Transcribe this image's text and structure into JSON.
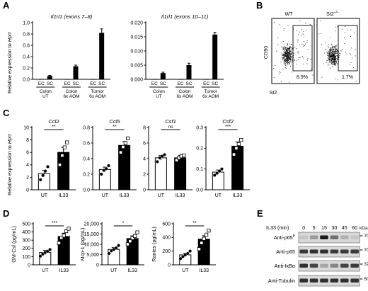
{
  "panel_letters": [
    "A",
    "B",
    "C",
    "D",
    "E"
  ],
  "panelA": {
    "ylabel_prefix": "Relative expression to ",
    "ylabel_gene": "Hprt",
    "group_labels": [
      "Colon UT",
      "Colon 6x AOM",
      "Tumor 6x AOM"
    ],
    "cell_labels": [
      "EC",
      "SC"
    ]
  },
  "panelB": {
    "plot_titles": [
      "WT",
      "St2"
    ],
    "ko_sup": "−/−",
    "ylabel": "CD90",
    "xlabel": "St2",
    "gate_values": [
      "8.9%",
      "1.7%"
    ]
  },
  "panelC": {
    "ylabel_prefix": "Relative expression to ",
    "ylabel_gene": "Hprt"
  },
  "panelE": {
    "header": "IL33 (min)",
    "timepoints": [
      "0",
      "5",
      "15",
      "30",
      "45",
      "60"
    ],
    "kda_label": "kDa",
    "rows": [
      {
        "label": "Anti-p65",
        "sup": "P",
        "kda": "70"
      },
      {
        "label": "Anti-p65",
        "sup": "",
        "kda": "70"
      },
      {
        "label": "Anti-IκBα",
        "sup": "",
        "kda": "37"
      },
      {
        "label": "Anti-Tubulin",
        "sup": "",
        "kda": "50"
      }
    ]
  },
  "chart_data": [
    {
      "type": "bar",
      "title": "Il1rl1 (exons 7–8)",
      "ylabel": "Relative expression to Hprt",
      "ylim": [
        0,
        1.0
      ],
      "yticks": [
        "0.0",
        "0.2",
        "0.4",
        "0.6",
        "0.8",
        "1.0"
      ],
      "categories": [
        "EC",
        "SC",
        "EC",
        "SC",
        "EC",
        "SC"
      ],
      "groups": [
        "Colon UT",
        "Colon 6x AOM",
        "Tumor 6x AOM"
      ],
      "values": [
        0.0,
        0.06,
        0.0,
        0.23,
        0.0,
        0.82
      ],
      "errors": [
        0.0,
        0.01,
        0.0,
        0.02,
        0.0,
        0.07
      ]
    },
    {
      "type": "bar",
      "title": "Il1rl1 (exons 10–11)",
      "ylabel": "",
      "ylim": [
        0,
        0.02
      ],
      "yticks": [
        "0.000",
        "0.005",
        "0.010",
        "0.015",
        "0.020"
      ],
      "categories": [
        "EC",
        "SC",
        "EC",
        "SC",
        "EC",
        "SC"
      ],
      "groups": [
        "Colon UT",
        "Colon 6x AOM",
        "Tumor 6x AOM"
      ],
      "values": [
        0.0,
        0.0022,
        0.0,
        0.005,
        0.0,
        0.0158
      ],
      "errors": [
        0.0,
        0.0003,
        0.0,
        0.0007,
        0.0,
        0.0008
      ]
    },
    {
      "type": "bar",
      "title": "Ccl2",
      "ylabel": "Relative expression to Hprt",
      "ylim": [
        0,
        10
      ],
      "yticks": [
        "0",
        "2",
        "4",
        "6",
        "8",
        "10"
      ],
      "categories": [
        "UT",
        "IL33"
      ],
      "values": [
        2.6,
        6.0
      ],
      "errors": [
        0.5,
        0.8
      ],
      "points": [
        [
          1.6,
          2.3,
          3.0,
          3.7
        ],
        [
          4.0,
          5.5,
          6.8,
          7.6
        ]
      ],
      "significance": "**"
    },
    {
      "type": "bar",
      "title": "Ccl5",
      "ylabel": "",
      "ylim": [
        0,
        0.8
      ],
      "yticks": [
        "0.0",
        "0.2",
        "0.4",
        "0.6",
        "0.8"
      ],
      "categories": [
        "UT",
        "IL33"
      ],
      "values": [
        0.26,
        0.57
      ],
      "errors": [
        0.03,
        0.05
      ],
      "points": [
        [
          0.2,
          0.25,
          0.27,
          0.31
        ],
        [
          0.48,
          0.55,
          0.6,
          0.66
        ]
      ],
      "significance": "**"
    },
    {
      "type": "bar",
      "title": "Csf1",
      "ylabel": "",
      "ylim": [
        0,
        8
      ],
      "yticks": [
        "0",
        "2",
        "4",
        "6",
        "8"
      ],
      "categories": [
        "UT",
        "IL33"
      ],
      "values": [
        4.1,
        4.1
      ],
      "errors": [
        0.3,
        0.3
      ],
      "points": [
        [
          3.6,
          4.1,
          4.3,
          4.5
        ],
        [
          3.8,
          4.1,
          4.3,
          4.4
        ]
      ],
      "significance": "ns"
    },
    {
      "type": "bar",
      "title": "Csf2",
      "ylabel": "",
      "ylim": [
        0,
        0.3
      ],
      "yticks": [
        "0.0",
        "0.1",
        "0.2",
        "0.3"
      ],
      "categories": [
        "UT",
        "IL33"
      ],
      "values": [
        0.085,
        0.21
      ],
      "errors": [
        0.01,
        0.02
      ],
      "points": [
        [
          0.07,
          0.08,
          0.09,
          0.1
        ],
        [
          0.17,
          0.2,
          0.22,
          0.24
        ]
      ],
      "significance": "***"
    },
    {
      "type": "bar",
      "title": "",
      "ylabel": "GM-Csf (pg/mL)",
      "ylim": [
        0,
        500
      ],
      "yticks": [
        "0",
        "100",
        "200",
        "300",
        "400",
        "500"
      ],
      "categories": [
        "UT",
        "IL33"
      ],
      "values": [
        150,
        345
      ],
      "errors": [
        25,
        40
      ],
      "points": [
        [
          105,
          130,
          150,
          165,
          185
        ],
        [
          265,
          330,
          355,
          410,
          440
        ]
      ],
      "significance": "***"
    },
    {
      "type": "bar",
      "title": "",
      "ylabel": "Mcp-1 (pg/mL)",
      "ylim": [
        0,
        20000
      ],
      "yticks": [
        "0",
        "5,000",
        "10,000",
        "15,000",
        "20,000"
      ],
      "categories": [
        "UT",
        "IL33"
      ],
      "values": [
        7500,
        12800
      ],
      "errors": [
        900,
        1300
      ],
      "points": [
        [
          5500,
          6800,
          7500,
          8200,
          9400
        ],
        [
          10000,
          11500,
          13000,
          14000,
          15800
        ]
      ],
      "significance": "*"
    },
    {
      "type": "bar",
      "title": "",
      "ylabel": "Rantes (pg/mL)",
      "ylim": [
        0,
        600
      ],
      "yticks": [
        "0",
        "200",
        "400",
        "600"
      ],
      "categories": [
        "UT",
        "IL33"
      ],
      "values": [
        145,
        375
      ],
      "errors": [
        25,
        50
      ],
      "points": [
        [
          90,
          120,
          145,
          165,
          200
        ],
        [
          230,
          320,
          380,
          440,
          500
        ]
      ],
      "significance": "**"
    }
  ]
}
